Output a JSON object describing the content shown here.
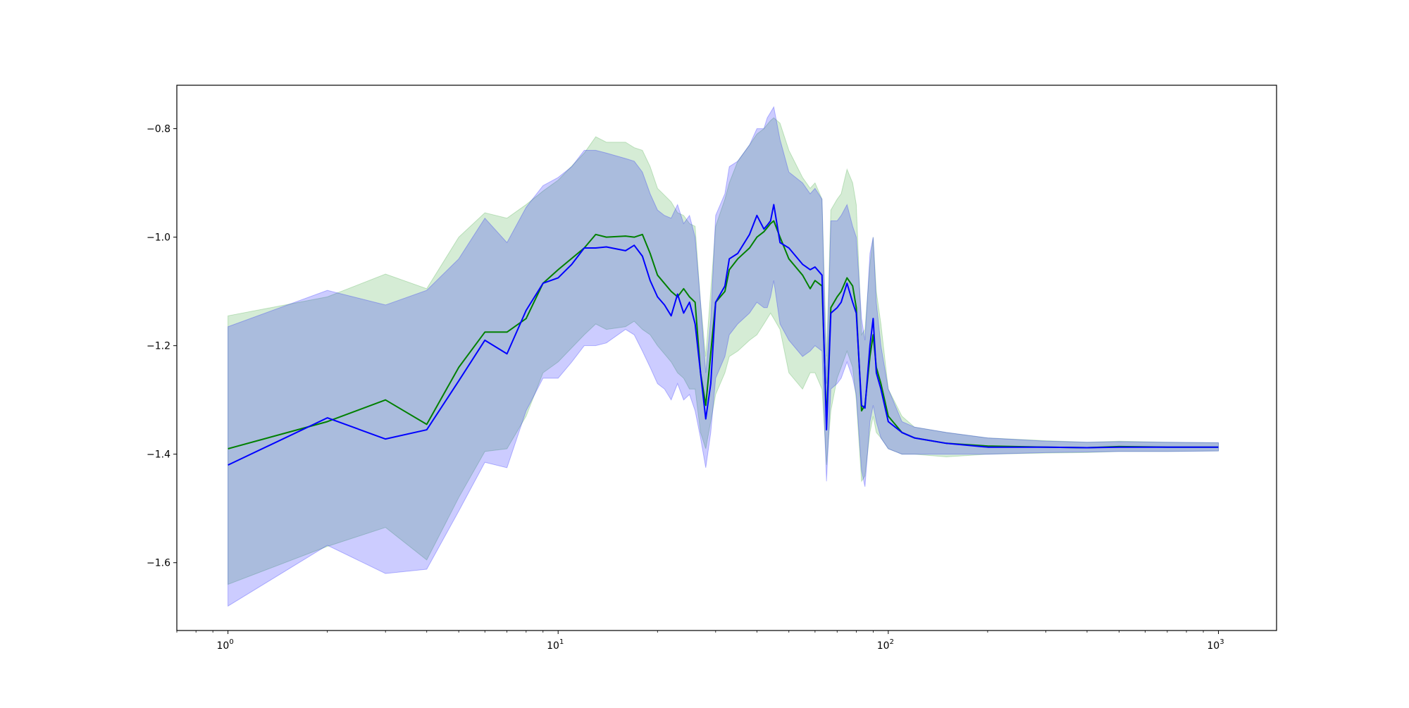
{
  "chart_data": {
    "type": "line",
    "xscale": "log",
    "xlim": [
      0.7,
      1500
    ],
    "ylim": [
      -1.725,
      -0.72
    ],
    "grid": false,
    "x_ticks": [
      {
        "value": 1,
        "base": "10",
        "exp": "0"
      },
      {
        "value": 10,
        "base": "10",
        "exp": "1"
      },
      {
        "value": 100,
        "base": "10",
        "exp": "2"
      },
      {
        "value": 1000,
        "base": "10",
        "exp": "3"
      }
    ],
    "y_ticks": [
      {
        "value": -0.8,
        "label": "−0.8"
      },
      {
        "value": -1.0,
        "label": "−1.0"
      },
      {
        "value": -1.2,
        "label": "−1.2"
      },
      {
        "value": -1.4,
        "label": "−1.4"
      },
      {
        "value": -1.6,
        "label": "−1.6"
      }
    ],
    "series": [
      {
        "color": "#008000",
        "band_color": "#2ca02c",
        "x": [
          1,
          2,
          3,
          4,
          5,
          6,
          7,
          8,
          9,
          10,
          12,
          13,
          14,
          16,
          17,
          18,
          19,
          20,
          22,
          23,
          24,
          25,
          26,
          27,
          28,
          30,
          32,
          33,
          35,
          38,
          40,
          42,
          44,
          45,
          47,
          50,
          55,
          58,
          60,
          63,
          65,
          67,
          70,
          72,
          75,
          78,
          80,
          83,
          85,
          88,
          90,
          92,
          95,
          100,
          110,
          120,
          150,
          200,
          300,
          400,
          500,
          700,
          1000
        ],
        "y": [
          -1.39,
          -1.34,
          -1.3,
          -1.345,
          -1.24,
          -1.175,
          -1.175,
          -1.15,
          -1.085,
          -1.06,
          -1.02,
          -0.995,
          -1.0,
          -0.998,
          -1.0,
          -0.995,
          -1.03,
          -1.07,
          -1.1,
          -1.11,
          -1.095,
          -1.11,
          -1.12,
          -1.25,
          -1.31,
          -1.12,
          -1.1,
          -1.06,
          -1.04,
          -1.02,
          -1.0,
          -0.99,
          -0.975,
          -0.97,
          -1.0,
          -1.04,
          -1.07,
          -1.095,
          -1.08,
          -1.09,
          -1.34,
          -1.13,
          -1.11,
          -1.1,
          -1.075,
          -1.09,
          -1.13,
          -1.32,
          -1.31,
          -1.22,
          -1.18,
          -1.24,
          -1.27,
          -1.33,
          -1.36,
          -1.37,
          -1.38,
          -1.385,
          -1.387,
          -1.388,
          -1.386,
          -1.387,
          -1.387
        ],
        "lower": [
          -1.64,
          -1.57,
          -1.535,
          -1.595,
          -1.48,
          -1.395,
          -1.39,
          -1.33,
          -1.25,
          -1.23,
          -1.18,
          -1.16,
          -1.17,
          -1.165,
          -1.155,
          -1.17,
          -1.18,
          -1.2,
          -1.23,
          -1.25,
          -1.26,
          -1.28,
          -1.28,
          -1.36,
          -1.39,
          -1.29,
          -1.25,
          -1.22,
          -1.21,
          -1.19,
          -1.18,
          -1.16,
          -1.14,
          -1.15,
          -1.17,
          -1.25,
          -1.28,
          -1.25,
          -1.25,
          -1.28,
          -1.42,
          -1.32,
          -1.26,
          -1.24,
          -1.21,
          -1.24,
          -1.3,
          -1.45,
          -1.44,
          -1.36,
          -1.33,
          -1.36,
          -1.37,
          -1.39,
          -1.4,
          -1.4,
          -1.405,
          -1.4,
          -1.398,
          -1.397,
          -1.395,
          -1.395,
          -1.394
        ],
        "upper": [
          -1.145,
          -1.11,
          -1.068,
          -1.095,
          -1.0,
          -0.955,
          -0.965,
          -0.94,
          -0.915,
          -0.895,
          -0.845,
          -0.815,
          -0.825,
          -0.825,
          -0.835,
          -0.84,
          -0.87,
          -0.91,
          -0.935,
          -0.955,
          -0.96,
          -0.975,
          -0.98,
          -1.12,
          -1.22,
          -0.98,
          -0.93,
          -0.9,
          -0.86,
          -0.83,
          -0.81,
          -0.8,
          -0.785,
          -0.78,
          -0.79,
          -0.84,
          -0.89,
          -0.91,
          -0.9,
          -0.93,
          -1.22,
          -0.95,
          -0.93,
          -0.92,
          -0.875,
          -0.9,
          -0.94,
          -1.18,
          -1.17,
          -1.05,
          -1.0,
          -1.1,
          -1.16,
          -1.28,
          -1.33,
          -1.35,
          -1.36,
          -1.37,
          -1.375,
          -1.378,
          -1.376,
          -1.378,
          -1.379
        ]
      },
      {
        "color": "#0000ff",
        "band_color": "#0000ff",
        "x": [
          1,
          2,
          3,
          4,
          5,
          6,
          7,
          8,
          9,
          10,
          11,
          12,
          13,
          14,
          16,
          17,
          18,
          19,
          20,
          21,
          22,
          23,
          24,
          25,
          26,
          27,
          28,
          29,
          30,
          32,
          33,
          35,
          38,
          40,
          42,
          43,
          44,
          45,
          47,
          50,
          55,
          58,
          60,
          63,
          65,
          67,
          70,
          72,
          75,
          78,
          80,
          83,
          85,
          88,
          90,
          92,
          95,
          100,
          110,
          120,
          150,
          200,
          300,
          400,
          500,
          700,
          1000
        ],
        "y": [
          -1.42,
          -1.333,
          -1.372,
          -1.355,
          -1.265,
          -1.19,
          -1.215,
          -1.135,
          -1.085,
          -1.075,
          -1.05,
          -1.02,
          -1.02,
          -1.018,
          -1.025,
          -1.015,
          -1.035,
          -1.08,
          -1.11,
          -1.125,
          -1.145,
          -1.105,
          -1.14,
          -1.12,
          -1.16,
          -1.25,
          -1.335,
          -1.27,
          -1.12,
          -1.09,
          -1.04,
          -1.03,
          -0.995,
          -0.96,
          -0.985,
          -0.978,
          -0.97,
          -0.94,
          -1.01,
          -1.02,
          -1.05,
          -1.06,
          -1.055,
          -1.07,
          -1.355,
          -1.14,
          -1.13,
          -1.12,
          -1.085,
          -1.12,
          -1.14,
          -1.31,
          -1.315,
          -1.2,
          -1.15,
          -1.25,
          -1.28,
          -1.34,
          -1.36,
          -1.37,
          -1.38,
          -1.387,
          -1.387,
          -1.388,
          -1.387,
          -1.387,
          -1.387
        ],
        "lower": [
          -1.68,
          -1.568,
          -1.62,
          -1.612,
          -1.505,
          -1.415,
          -1.425,
          -1.32,
          -1.26,
          -1.26,
          -1.23,
          -1.2,
          -1.2,
          -1.195,
          -1.17,
          -1.18,
          -1.21,
          -1.24,
          -1.27,
          -1.28,
          -1.3,
          -1.27,
          -1.3,
          -1.29,
          -1.32,
          -1.37,
          -1.425,
          -1.36,
          -1.26,
          -1.22,
          -1.18,
          -1.16,
          -1.14,
          -1.12,
          -1.13,
          -1.13,
          -1.11,
          -1.08,
          -1.16,
          -1.19,
          -1.22,
          -1.21,
          -1.2,
          -1.21,
          -1.45,
          -1.28,
          -1.27,
          -1.26,
          -1.23,
          -1.26,
          -1.29,
          -1.43,
          -1.46,
          -1.34,
          -1.31,
          -1.34,
          -1.37,
          -1.39,
          -1.4,
          -1.4,
          -1.4,
          -1.4,
          -1.397,
          -1.396,
          -1.395,
          -1.395,
          -1.394
        ],
        "upper": [
          -1.165,
          -1.098,
          -1.125,
          -1.098,
          -1.04,
          -0.965,
          -1.01,
          -0.945,
          -0.905,
          -0.89,
          -0.87,
          -0.84,
          -0.84,
          -0.845,
          -0.855,
          -0.86,
          -0.88,
          -0.92,
          -0.95,
          -0.96,
          -0.965,
          -0.94,
          -0.975,
          -0.96,
          -1.0,
          -1.12,
          -1.25,
          -1.15,
          -0.96,
          -0.92,
          -0.87,
          -0.86,
          -0.83,
          -0.8,
          -0.8,
          -0.78,
          -0.77,
          -0.76,
          -0.82,
          -0.88,
          -0.9,
          -0.92,
          -0.91,
          -0.93,
          -1.27,
          -0.97,
          -0.97,
          -0.96,
          -0.94,
          -0.98,
          -1.0,
          -1.15,
          -1.19,
          -1.03,
          -1.0,
          -1.12,
          -1.2,
          -1.28,
          -1.34,
          -1.35,
          -1.36,
          -1.37,
          -1.376,
          -1.378,
          -1.377,
          -1.378,
          -1.379
        ]
      }
    ]
  }
}
